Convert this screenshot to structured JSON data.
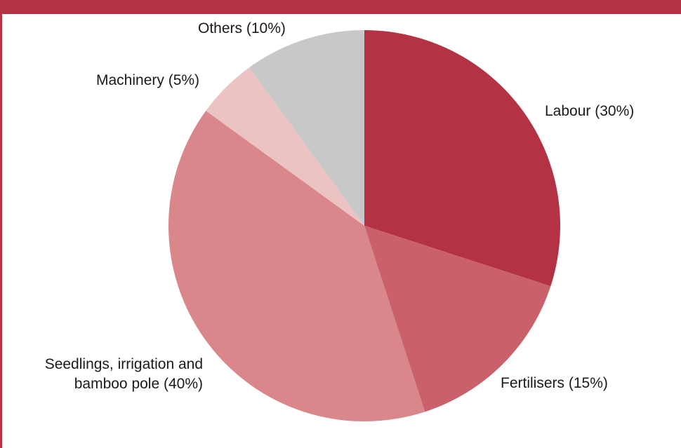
{
  "chart_data": {
    "type": "pie",
    "start_angle_deg": 0,
    "direction": "clockwise",
    "slices": [
      {
        "label": "Labour (30%)",
        "value": 30,
        "color": "#b33345"
      },
      {
        "label": "Fertilisers (15%)",
        "value": 15,
        "color": "#c9606a"
      },
      {
        "label": "Seedlings, irrigation and\nbamboo pole (40%)",
        "value": 40,
        "color": "#d9878a"
      },
      {
        "label": "Machinery (5%)",
        "value": 5,
        "color": "#ebc3c3"
      },
      {
        "label": "Others (10%)",
        "value": 10,
        "color": "#c8c8ca"
      }
    ]
  },
  "colors": {
    "frame": "#b33345"
  }
}
